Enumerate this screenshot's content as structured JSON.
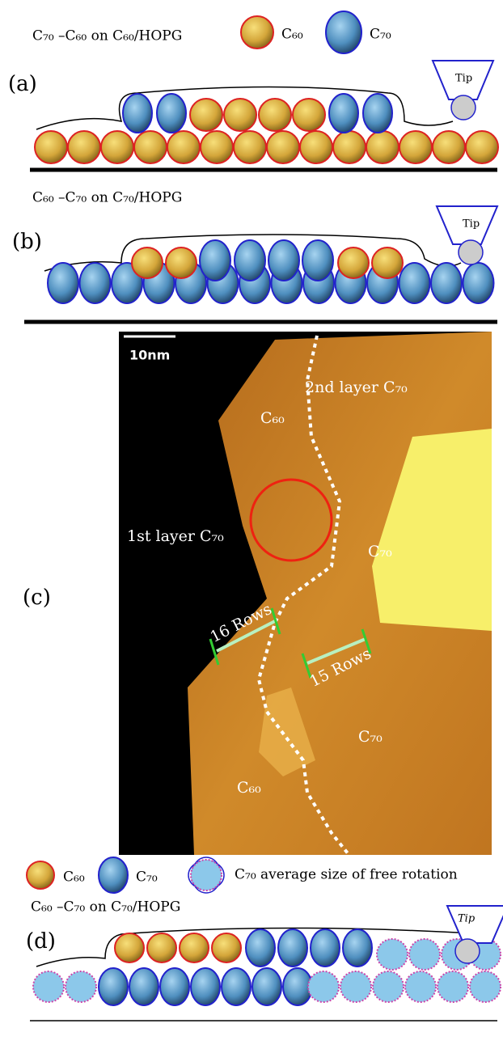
{
  "panel_a": {
    "caption": "C₇₀ –C₆₀ on C₆₀/HOPG",
    "legend": [
      "C₆₀",
      "C₇₀"
    ],
    "label": "(a)",
    "tip": "Tip"
  },
  "panel_b": {
    "caption": "C₆₀ –C₇₀ on C₇₀/HOPG",
    "label": "(b)",
    "tip": "Tip"
  },
  "panel_c": {
    "label": "(c)",
    "scale_bar": "10nm",
    "annotations": [
      "2nd layer C₇₀",
      "C₆₀",
      "1st layer C₇₀",
      "C₇₀",
      "16 Rows",
      "15 Rows",
      "C₇₀",
      "C₆₀"
    ]
  },
  "legend_d": [
    "C₆₀",
    "C₇₀",
    "C₇₀ average size of free rotation"
  ],
  "panel_d": {
    "caption": "C₆₀ –C₇₀ on C₇₀/HOPG",
    "label": "(d)",
    "tip": "Tip"
  }
}
